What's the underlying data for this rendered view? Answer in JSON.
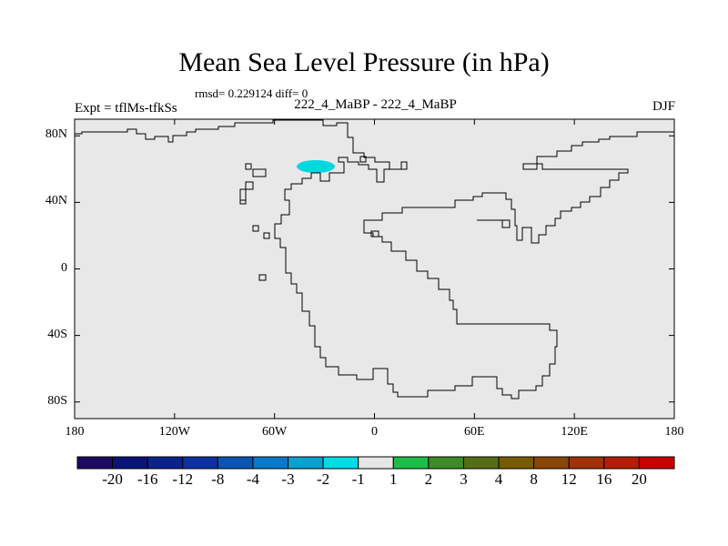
{
  "title": "Mean Sea Level Pressure (in hPa)",
  "stats": {
    "rmsd_text": "rmsd= 0.229124 diff= 0"
  },
  "left_label": "Expt = tflMs-tfkSs",
  "center_label": "222_4_MaBP - 222_4_MaBP",
  "right_label": "DJF",
  "colors": {
    "land_fill": "#e8e8e8",
    "anomaly_patch": "#00d8e0",
    "coastline": "#000000"
  },
  "map": {
    "lat_ticks": [
      "80N",
      "40N",
      "0",
      "40S",
      "80S"
    ],
    "lon_ticks": [
      "180",
      "120W",
      "60W",
      "0",
      "60E",
      "120E",
      "180"
    ],
    "lon_range": [
      -180,
      180
    ],
    "lat_range": [
      -90,
      90
    ]
  },
  "colorbar": {
    "labels": [
      "-20",
      "-16",
      "-12",
      "-8",
      "-4",
      "-3",
      "-2",
      "-1",
      "1",
      "2",
      "3",
      "4",
      "8",
      "12",
      "16",
      "20"
    ],
    "colors": [
      "#1e0a64",
      "#0a1478",
      "#0a238c",
      "#0a32a0",
      "#0a55b4",
      "#0a78c8",
      "#0aa0d2",
      "#00dce6",
      "#e6e6e6",
      "#1ebe46",
      "#3c8c28",
      "#556e14",
      "#785a00",
      "#8c4605",
      "#a03205",
      "#b41e05",
      "#c80000"
    ]
  }
}
